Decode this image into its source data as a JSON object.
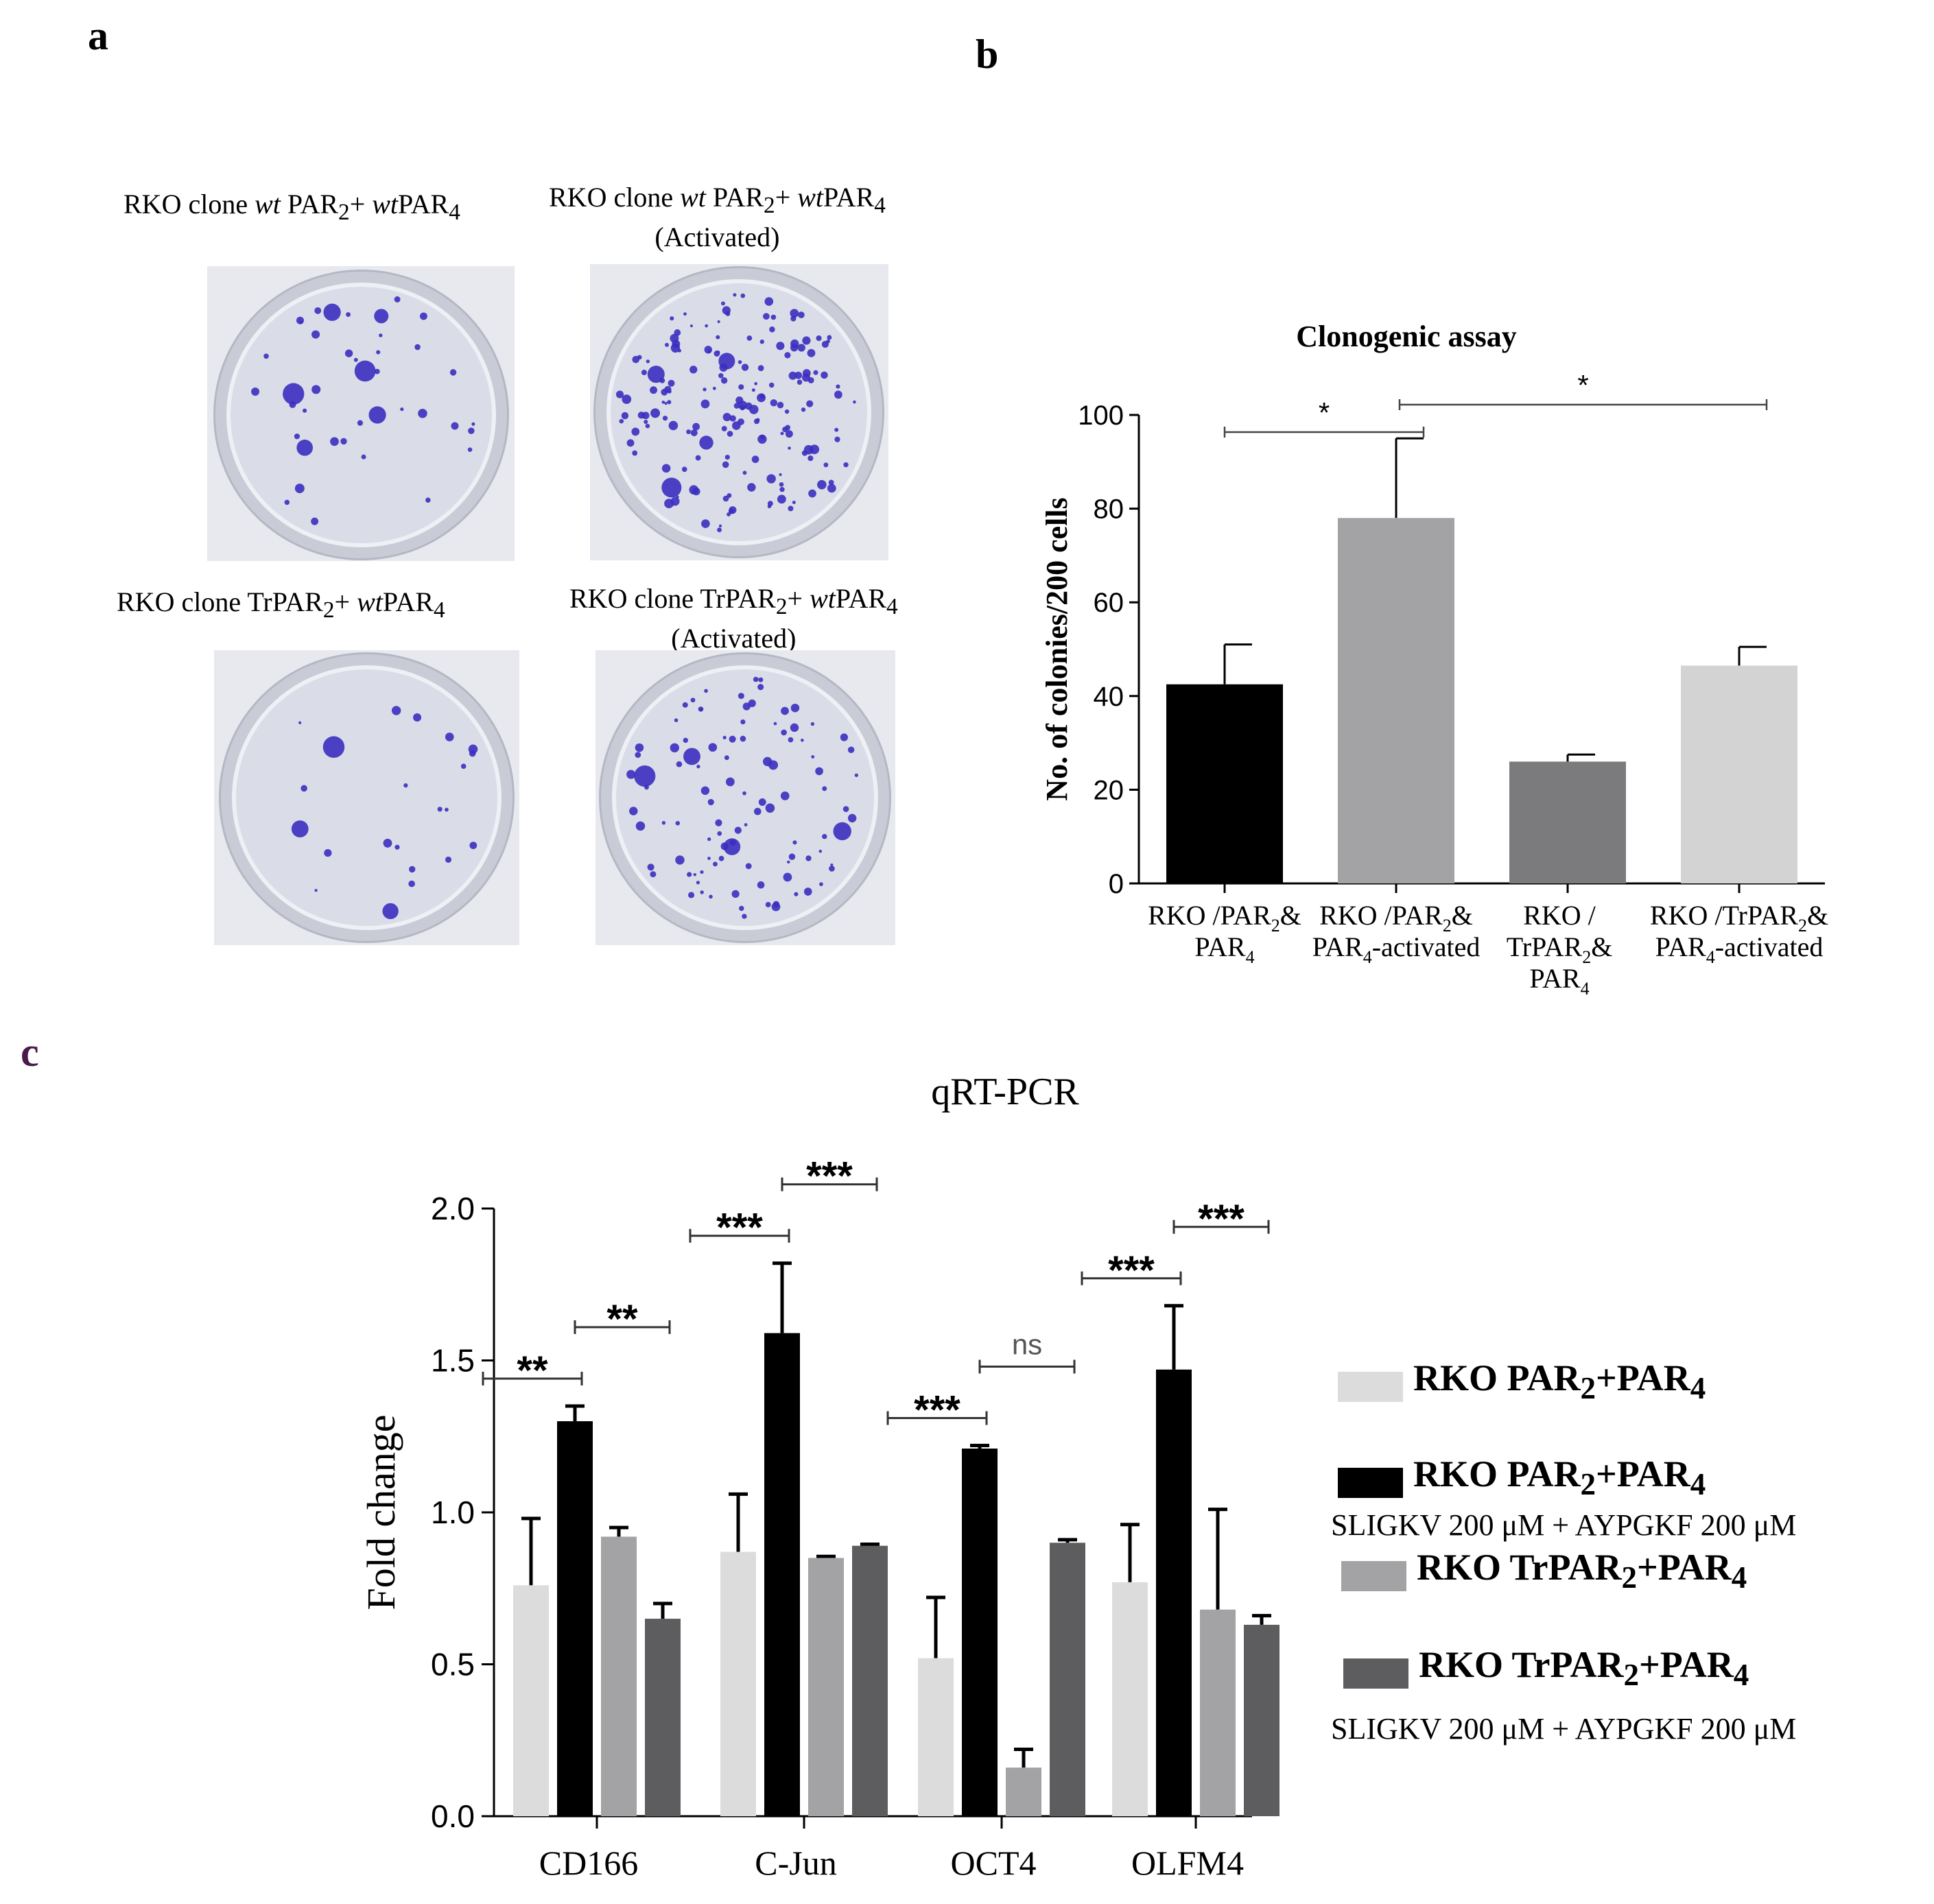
{
  "panel_letters": {
    "a": "a",
    "b": "b",
    "c": "c"
  },
  "panel_a": {
    "captions": [
      {
        "prefix": "RKO clone ",
        "it1": "wt",
        "mid": " PAR",
        "sub1": "2",
        "plus": "+ ",
        "it2": "wt",
        "tail": "PAR",
        "sub2": "4",
        "line2": ""
      },
      {
        "prefix": "RKO clone ",
        "it1": "wt",
        "mid": " PAR",
        "sub1": "2",
        "plus": "+ ",
        "it2": "wt",
        "tail": "PAR",
        "sub2": "4",
        "line2": "(Activated)"
      },
      {
        "prefix": "RKO clone ",
        "it1": "",
        "mid": "TrPAR",
        "sub1": "2",
        "plus": "+ ",
        "it2": "wt",
        "tail": "PAR",
        "sub2": "4",
        "line2": ""
      },
      {
        "prefix": "RKO clone ",
        "it1": "",
        "mid": "TrPAR",
        "sub1": "2",
        "plus": "+ ",
        "it2": "wt",
        "tail": "PAR",
        "sub2": "4",
        "line2": "(Activated)"
      }
    ],
    "colony_color": "#3b2fc0"
  },
  "chart_data": [
    {
      "type": "bar",
      "title": "Clonogenic assay",
      "ylabel": "No. of colonies/200 cells",
      "ylim": [
        0,
        100
      ],
      "yticks": [
        0,
        20,
        40,
        60,
        80,
        100
      ],
      "categories": [
        {
          "lines": [
            [
              "RKO /PAR",
              "2",
              "&"
            ],
            [
              "PAR",
              "4",
              ""
            ]
          ]
        },
        {
          "lines": [
            [
              "RKO /PAR",
              "2",
              "&"
            ],
            [
              "PAR",
              "4",
              "-activated"
            ]
          ]
        },
        {
          "lines": [
            [
              "RKO /",
              "",
              ""
            ],
            [
              "TrPAR",
              "2",
              "&"
            ],
            [
              "PAR",
              "4",
              ""
            ]
          ]
        },
        {
          "lines": [
            [
              "RKO /TrPAR",
              "2",
              "&"
            ],
            [
              "PAR",
              "4",
              "-activated"
            ]
          ]
        }
      ],
      "values": [
        42.5,
        78,
        26,
        46.5
      ],
      "errors": [
        8.5,
        17,
        1.5,
        4
      ],
      "colors": [
        "#000000",
        "#a3a3a6",
        "#7b7b7d",
        "#d3d3d3"
      ],
      "significance": [
        {
          "from": 0,
          "to": 1,
          "label": "*"
        },
        {
          "from": 1,
          "to": 3,
          "label": "*"
        }
      ]
    },
    {
      "type": "bar",
      "title": "qRT-PCR",
      "ylabel": "Fold change",
      "ylim": [
        0,
        2.0
      ],
      "yticks": [
        "0.0",
        "0.5",
        "1.0",
        "1.5",
        "2.0"
      ],
      "categories": [
        "CD166",
        "C-Jun",
        "OCT4",
        "OLFM4"
      ],
      "series": [
        {
          "name": "RKO PAR2+PAR4",
          "color": "#dcdcdc",
          "values": [
            0.76,
            0.87,
            0.52,
            0.77
          ],
          "errors": [
            0.22,
            0.19,
            0.2,
            0.19
          ]
        },
        {
          "name": "RKO PAR2+PAR4 SLIGKV 200 μM + AYPGKF 200 μM",
          "color": "#000000",
          "values": [
            1.3,
            1.59,
            1.21,
            1.47
          ],
          "errors": [
            0.05,
            0.23,
            0.01,
            0.21
          ]
        },
        {
          "name": "RKO TrPAR2+PAR4",
          "color": "#a3a3a6",
          "values": [
            0.92,
            0.85,
            0.16,
            0.68
          ],
          "errors": [
            0.03,
            0.005,
            0.06,
            0.33
          ]
        },
        {
          "name": "RKO TrPAR2+PAR4 SLIGKV 200 μM + AYPGKF 200 μM",
          "color": "#5d5d5f",
          "values": [
            0.65,
            0.89,
            0.9,
            0.63
          ],
          "errors": [
            0.05,
            0.005,
            0.01,
            0.03
          ]
        }
      ],
      "significance": [
        {
          "group": 0,
          "from": 0,
          "to": 1,
          "label": "**"
        },
        {
          "group": 0,
          "from": 1,
          "to": 3,
          "label": "**"
        },
        {
          "group": 1,
          "from": 0,
          "to": 1,
          "label": "***"
        },
        {
          "group": 1,
          "from": 1,
          "to": 3,
          "label": "***"
        },
        {
          "group": 2,
          "from": 0,
          "to": 1,
          "label": "***"
        },
        {
          "group": 2,
          "from": 1,
          "to": 3,
          "label": "ns"
        },
        {
          "group": 3,
          "from": 0,
          "to": 1,
          "label": "***"
        },
        {
          "group": 3,
          "from": 1,
          "to": 3,
          "label": "***"
        }
      ]
    }
  ],
  "legend": [
    {
      "main": "RKO PAR",
      "sub1": "2",
      "mid": "+PAR",
      "sub2": "4",
      "note": ""
    },
    {
      "main": "RKO PAR",
      "sub1": "2",
      "mid": "+PAR",
      "sub2": "4",
      "note": "SLIGKV 200 μM + AYPGKF 200 μM"
    },
    {
      "main": "RKO TrPAR",
      "sub1": "2",
      "mid": "+PAR",
      "sub2": "4",
      "note": ""
    },
    {
      "main": "RKO TrPAR",
      "sub1": "2",
      "mid": "+PAR",
      "sub2": "4",
      "note": "SLIGKV 200 μM + AYPGKF 200 μM"
    }
  ]
}
